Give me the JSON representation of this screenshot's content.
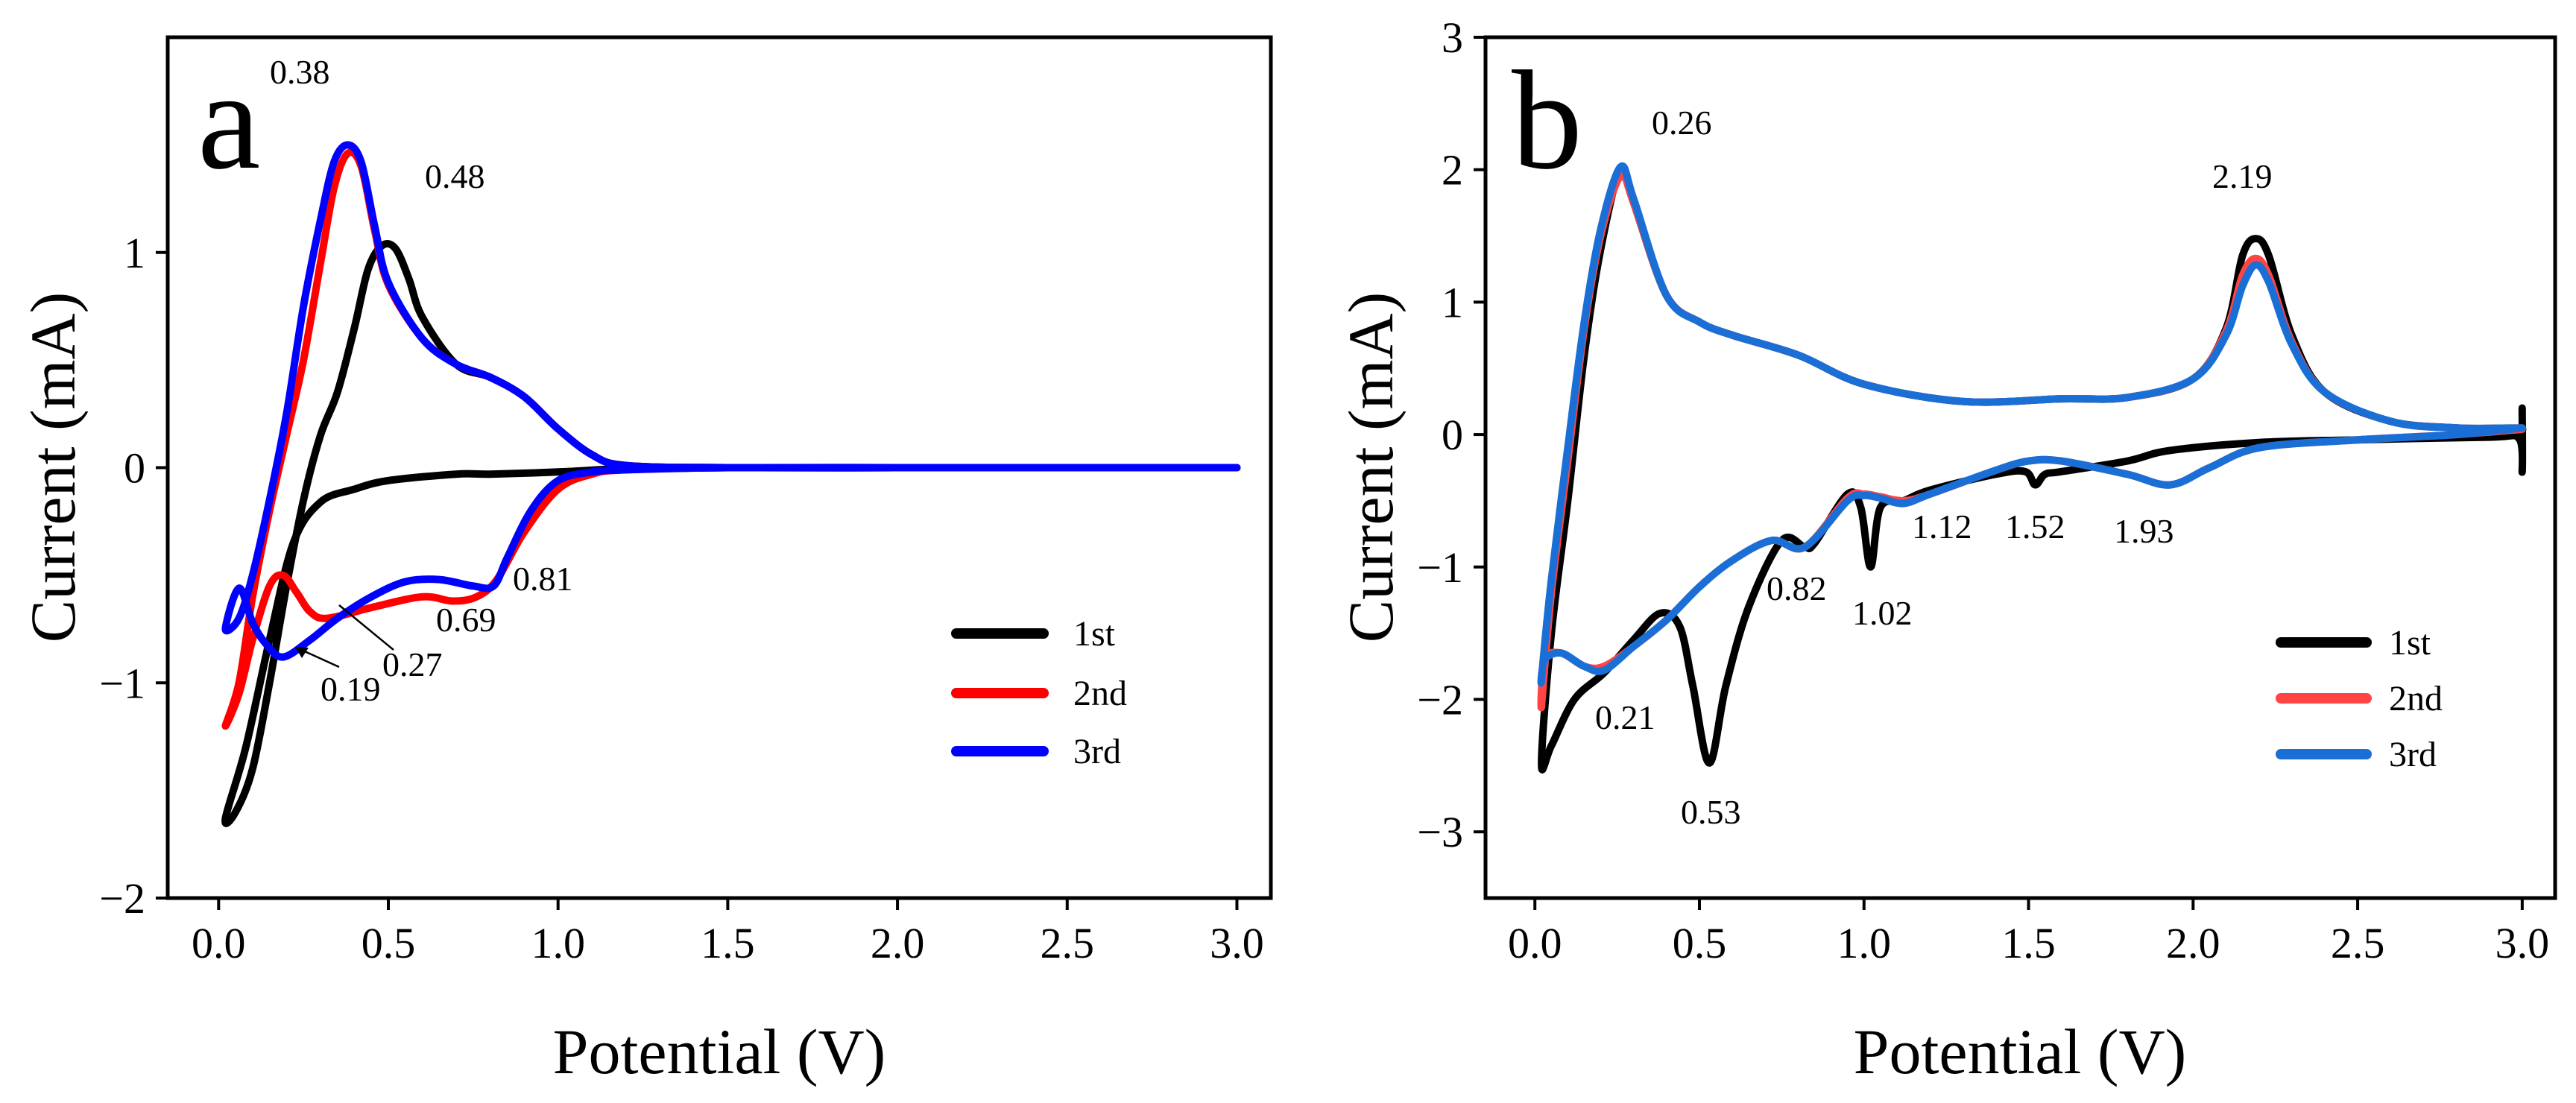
{
  "chart_data": [
    {
      "panel": "a",
      "type": "line",
      "xlabel": "Potential (V)",
      "ylabel": "Current (mA)",
      "xlim": [
        -0.15,
        3.1
      ],
      "ylim": [
        -2,
        2
      ],
      "xticks": [
        0.0,
        0.5,
        1.0,
        1.5,
        2.0,
        2.5,
        3.0
      ],
      "xtick_labels": [
        "0.0",
        "0.5",
        "1.0",
        "1.5",
        "2.0",
        "2.5",
        "3.0"
      ],
      "yticks": [
        -2,
        -1,
        0,
        1
      ],
      "ytick_labels": [
        "−2",
        "−1",
        "0",
        "1"
      ],
      "legend_position": "lower-right",
      "series": [
        {
          "name": "1st",
          "color": "#000000",
          "x": [
            3.0,
            2.5,
            2.0,
            1.5,
            1.2,
            1.0,
            0.8,
            0.7,
            0.5,
            0.4,
            0.3,
            0.22,
            0.15,
            0.08,
            0.02,
            0.05,
            0.1,
            0.15,
            0.2,
            0.25,
            0.3,
            0.35,
            0.4,
            0.44,
            0.48,
            0.52,
            0.56,
            0.6,
            0.7,
            0.8,
            0.9,
            1.0,
            1.1,
            1.2,
            1.5,
            2.0,
            2.5,
            3.0
          ],
          "y": [
            0.0,
            0.0,
            0.0,
            0.0,
            -0.005,
            -0.02,
            -0.03,
            -0.03,
            -0.06,
            -0.1,
            -0.16,
            -0.35,
            -0.8,
            -1.3,
            -1.63,
            -1.6,
            -1.4,
            -1.0,
            -0.55,
            -0.15,
            0.15,
            0.35,
            0.65,
            0.92,
            1.03,
            1.02,
            0.88,
            0.7,
            0.48,
            0.42,
            0.33,
            0.18,
            0.06,
            0.01,
            0.0,
            0.0,
            0.0,
            0.0
          ]
        },
        {
          "name": "2nd",
          "color": "#ff0000",
          "x": [
            3.0,
            2.5,
            2.0,
            1.5,
            1.2,
            1.1,
            1.0,
            0.9,
            0.82,
            0.76,
            0.69,
            0.6,
            0.45,
            0.32,
            0.27,
            0.23,
            0.19,
            0.15,
            0.1,
            0.06,
            0.02,
            0.06,
            0.1,
            0.15,
            0.2,
            0.25,
            0.3,
            0.34,
            0.38,
            0.42,
            0.46,
            0.5,
            0.6,
            0.7,
            0.8,
            0.9,
            1.0,
            1.1,
            1.2,
            1.5,
            2.0,
            2.5,
            3.0
          ],
          "y": [
            0.0,
            0.0,
            0.0,
            0.0,
            -0.01,
            -0.03,
            -0.1,
            -0.3,
            -0.52,
            -0.6,
            -0.62,
            -0.6,
            -0.65,
            -0.7,
            -0.67,
            -0.58,
            -0.5,
            -0.55,
            -0.8,
            -1.05,
            -1.2,
            -1.0,
            -0.6,
            -0.2,
            0.15,
            0.5,
            0.95,
            1.3,
            1.46,
            1.4,
            1.1,
            0.85,
            0.6,
            0.48,
            0.42,
            0.33,
            0.18,
            0.06,
            0.01,
            0.0,
            0.0,
            0.0,
            0.0
          ]
        },
        {
          "name": "3rd",
          "color": "#0000ff",
          "x": [
            3.0,
            2.5,
            2.0,
            1.5,
            1.2,
            1.1,
            1.0,
            0.92,
            0.85,
            0.81,
            0.75,
            0.65,
            0.55,
            0.45,
            0.35,
            0.27,
            0.19,
            0.14,
            0.1,
            0.06,
            0.02,
            0.06,
            0.1,
            0.15,
            0.2,
            0.25,
            0.3,
            0.34,
            0.38,
            0.42,
            0.46,
            0.5,
            0.6,
            0.7,
            0.8,
            0.9,
            1.0,
            1.1,
            1.2,
            1.5,
            2.0,
            2.5,
            3.0
          ],
          "y": [
            0.0,
            0.0,
            0.0,
            0.0,
            -0.01,
            -0.02,
            -0.06,
            -0.2,
            -0.42,
            -0.55,
            -0.55,
            -0.52,
            -0.53,
            -0.6,
            -0.7,
            -0.8,
            -0.88,
            -0.82,
            -0.72,
            -0.56,
            -0.75,
            -0.7,
            -0.5,
            -0.15,
            0.25,
            0.75,
            1.15,
            1.42,
            1.5,
            1.42,
            1.12,
            0.86,
            0.6,
            0.48,
            0.42,
            0.33,
            0.18,
            0.06,
            0.01,
            0.0,
            0.0,
            0.0,
            0.0
          ]
        }
      ],
      "annotations": [
        "0.38",
        "0.48",
        "0.81",
        "0.69",
        "0.27",
        "0.19"
      ],
      "panel_label": "a"
    },
    {
      "panel": "b",
      "type": "line",
      "xlabel": "Potential (V)",
      "ylabel": "Current (mA)",
      "xlim": [
        -0.15,
        3.1
      ],
      "ylim": [
        -3.5,
        3
      ],
      "xticks": [
        0.0,
        0.5,
        1.0,
        1.5,
        2.0,
        2.5,
        3.0
      ],
      "xtick_labels": [
        "0.0",
        "0.5",
        "1.0",
        "1.5",
        "2.0",
        "2.5",
        "3.0"
      ],
      "yticks": [
        -3,
        -2,
        -1,
        0,
        1,
        2,
        3
      ],
      "ytick_labels": [
        "−3",
        "−2",
        "−1",
        "0",
        "1",
        "2",
        "3"
      ],
      "legend_position": "lower-right",
      "series": [
        {
          "name": "1st",
          "color": "#000000",
          "x": [
            3.0,
            3.0,
            2.99,
            2.9,
            2.5,
            2.2,
            1.93,
            1.8,
            1.6,
            1.55,
            1.52,
            1.49,
            1.4,
            1.2,
            1.12,
            1.05,
            1.02,
            0.99,
            0.95,
            0.85,
            0.82,
            0.75,
            0.65,
            0.58,
            0.53,
            0.48,
            0.44,
            0.38,
            0.3,
            0.21,
            0.12,
            0.05,
            0.02,
            0.05,
            0.1,
            0.15,
            0.2,
            0.26,
            0.3,
            0.4,
            0.5,
            0.6,
            0.8,
            1.0,
            1.3,
            1.6,
            1.8,
            2.0,
            2.1,
            2.15,
            2.19,
            2.23,
            2.3,
            2.4,
            2.6,
            2.8,
            2.98,
            3.0
          ],
          "y": [
            0.2,
            -0.28,
            -0.03,
            -0.02,
            -0.04,
            -0.06,
            -0.12,
            -0.2,
            -0.28,
            -0.3,
            -0.38,
            -0.28,
            -0.3,
            -0.42,
            -0.5,
            -0.55,
            -1.0,
            -0.55,
            -0.45,
            -0.82,
            -0.85,
            -0.8,
            -1.3,
            -1.9,
            -2.48,
            -1.9,
            -1.45,
            -1.35,
            -1.55,
            -1.8,
            -2.0,
            -2.35,
            -2.48,
            -1.5,
            -0.5,
            0.6,
            1.4,
            2.0,
            1.75,
            1.05,
            0.85,
            0.75,
            0.6,
            0.38,
            0.25,
            0.27,
            0.28,
            0.42,
            0.8,
            1.35,
            1.48,
            1.35,
            0.75,
            0.32,
            0.1,
            0.05,
            0.03,
            0.05
          ]
        },
        {
          "name": "2nd",
          "color": "#ff4444",
          "x": [
            3.0,
            2.8,
            2.5,
            2.2,
            2.05,
            1.93,
            1.8,
            1.6,
            1.5,
            1.4,
            1.2,
            1.12,
            1.05,
            1.0,
            0.95,
            0.82,
            0.72,
            0.6,
            0.5,
            0.4,
            0.3,
            0.21,
            0.15,
            0.08,
            0.03,
            0.02,
            0.05,
            0.1,
            0.15,
            0.2,
            0.26,
            0.3,
            0.4,
            0.5,
            0.6,
            0.8,
            1.0,
            1.3,
            1.6,
            1.8,
            2.0,
            2.1,
            2.15,
            2.19,
            2.23,
            2.3,
            2.4,
            2.6,
            2.8,
            3.0
          ],
          "y": [
            0.04,
            0.0,
            -0.04,
            -0.1,
            -0.25,
            -0.38,
            -0.3,
            -0.2,
            -0.2,
            -0.27,
            -0.45,
            -0.5,
            -0.47,
            -0.45,
            -0.48,
            -0.85,
            -0.8,
            -0.95,
            -1.15,
            -1.4,
            -1.6,
            -1.75,
            -1.75,
            -1.65,
            -1.7,
            -2.05,
            -1.2,
            -0.2,
            0.8,
            1.5,
            1.95,
            1.75,
            1.05,
            0.85,
            0.75,
            0.6,
            0.38,
            0.25,
            0.27,
            0.28,
            0.42,
            0.78,
            1.2,
            1.33,
            1.2,
            0.7,
            0.32,
            0.1,
            0.05,
            0.05
          ]
        },
        {
          "name": "3rd",
          "color": "#1a6fd6",
          "x": [
            3.0,
            2.8,
            2.5,
            2.2,
            2.05,
            1.93,
            1.8,
            1.6,
            1.5,
            1.4,
            1.2,
            1.12,
            1.05,
            1.0,
            0.95,
            0.82,
            0.72,
            0.6,
            0.5,
            0.4,
            0.3,
            0.21,
            0.15,
            0.08,
            0.03,
            0.02,
            0.05,
            0.1,
            0.15,
            0.2,
            0.26,
            0.3,
            0.4,
            0.5,
            0.6,
            0.8,
            1.0,
            1.3,
            1.6,
            1.8,
            2.0,
            2.1,
            2.15,
            2.19,
            2.23,
            2.3,
            2.4,
            2.6,
            2.8,
            3.0
          ],
          "y": [
            0.05,
            0.0,
            -0.04,
            -0.1,
            -0.25,
            -0.38,
            -0.3,
            -0.2,
            -0.2,
            -0.27,
            -0.45,
            -0.52,
            -0.48,
            -0.46,
            -0.5,
            -0.85,
            -0.8,
            -0.95,
            -1.15,
            -1.4,
            -1.6,
            -1.78,
            -1.75,
            -1.65,
            -1.7,
            -1.85,
            -1.1,
            -0.1,
            0.85,
            1.55,
            2.02,
            1.78,
            1.05,
            0.85,
            0.75,
            0.6,
            0.38,
            0.25,
            0.27,
            0.28,
            0.42,
            0.75,
            1.12,
            1.28,
            1.15,
            0.68,
            0.32,
            0.1,
            0.05,
            0.05
          ]
        }
      ],
      "annotations": [
        "0.26",
        "2.19",
        "0.82",
        "1.02",
        "1.12",
        "1.52",
        "1.93",
        "0.21",
        "0.53"
      ],
      "panel_label": "b"
    }
  ]
}
